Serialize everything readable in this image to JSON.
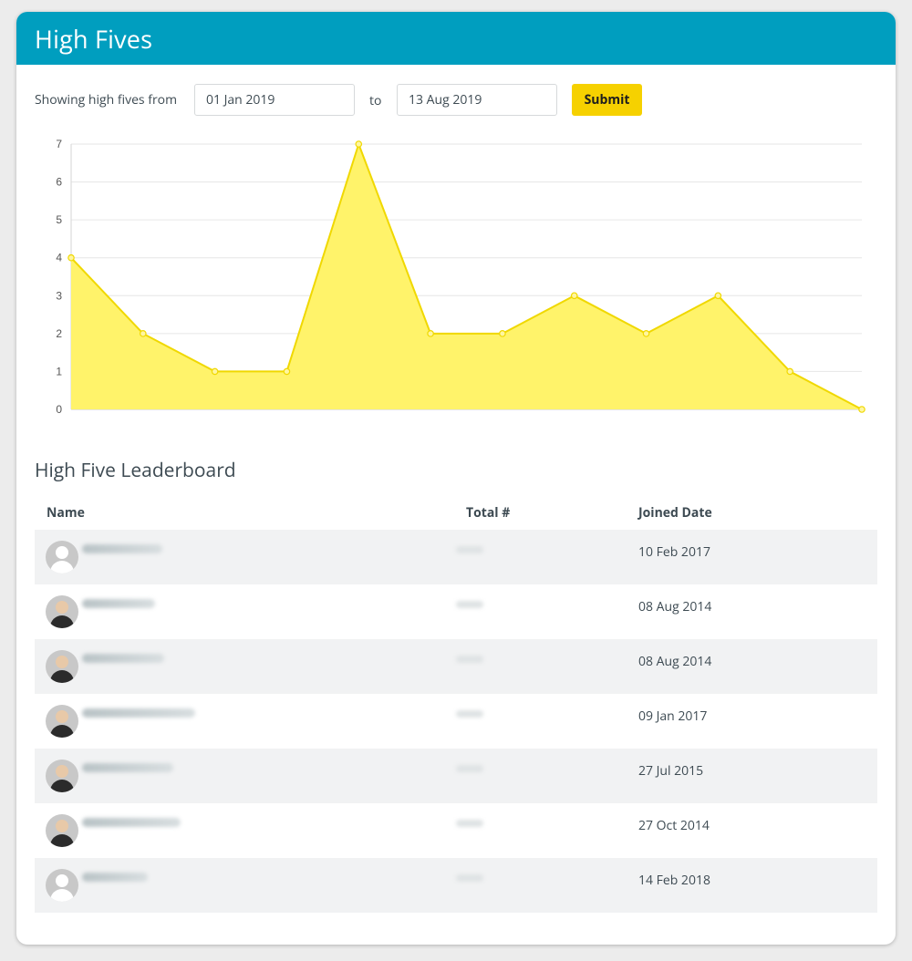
{
  "header": {
    "title": "High Fives"
  },
  "filter": {
    "label": "Showing high fives from",
    "from_value": "01 Jan 2019",
    "to_label": "to",
    "to_value": "13 Aug 2019",
    "submit_label": "Submit"
  },
  "chart_data": {
    "type": "area",
    "x": [
      1,
      2,
      3,
      4,
      5,
      6,
      7,
      8,
      9,
      10,
      11,
      12
    ],
    "values": [
      4,
      2,
      1,
      1,
      7,
      2,
      2,
      3,
      2,
      3,
      1,
      0
    ],
    "title": "",
    "xlabel": "",
    "ylabel": "",
    "ylim": [
      0,
      7
    ],
    "yticks": [
      0,
      1,
      2,
      3,
      4,
      5,
      6,
      7
    ],
    "grid": true,
    "legend": "none",
    "colors": {
      "fill": "#fff36a",
      "line": "#f0d800"
    }
  },
  "leaderboard": {
    "title": "High Five Leaderboard",
    "columns": {
      "name": "Name",
      "total": "Total #",
      "joined": "Joined Date"
    },
    "rows": [
      {
        "avatar": "default-avatar",
        "joined": "10 Feb 2017"
      },
      {
        "avatar": "photo-avatar",
        "joined": "08 Aug 2014"
      },
      {
        "avatar": "photo-avatar",
        "joined": "08 Aug 2014"
      },
      {
        "avatar": "photo-avatar",
        "joined": "09 Jan 2017"
      },
      {
        "avatar": "photo-avatar",
        "joined": "27 Jul 2015"
      },
      {
        "avatar": "photo-avatar",
        "joined": "27 Oct 2014"
      },
      {
        "avatar": "default-avatar",
        "joined": "14 Feb 2018"
      }
    ]
  },
  "colors": {
    "header_bg": "#009ebf",
    "accent": "#f6d100",
    "row_alt": "#f1f2f3"
  }
}
